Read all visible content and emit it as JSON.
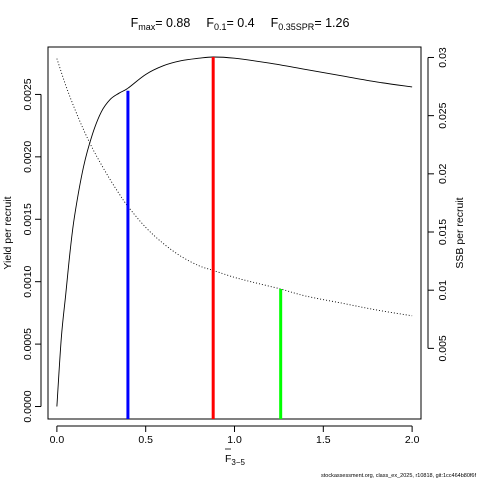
{
  "chart_data": {
    "type": "line",
    "title": {
      "fmax_label": "F",
      "fmax_sub": "max",
      "fmax_value": "= 0.88",
      "f01_label": "F",
      "f01_sub": "0.1",
      "f01_value": "= 0.4",
      "fspr_label": "F",
      "fspr_sub": "0.35SPR",
      "fspr_value": "= 1.26"
    },
    "xlabel": "F",
    "xlabel_sub": "3−5",
    "ylabel_left": "Yield per recruit",
    "ylabel_right": "SSB per recruit",
    "xlim": [
      -0.05,
      2.05
    ],
    "ylim_left": [
      -0.0001,
      0.00288
    ],
    "ylim_right": [
      -0.00107,
      0.0309
    ],
    "x_ticks": [
      0,
      0.5,
      1,
      1.5,
      2
    ],
    "x_tick_labels": [
      "0.0",
      "0.5",
      "1.0",
      "1.5",
      "2.0"
    ],
    "y_left_ticks": [
      0,
      0.0005,
      0.001,
      0.0015,
      0.002,
      0.0025
    ],
    "y_left_tick_labels": [
      "0.0000",
      "0.0005",
      "0.0010",
      "0.0015",
      "0.0020",
      "0.0025"
    ],
    "y_right_ticks": [
      0.005,
      0.01,
      0.015,
      0.02,
      0.025,
      0.03
    ],
    "y_right_tick_labels": [
      "0.005",
      "0.01",
      "0.015",
      "0.02",
      "0.025",
      "0.03"
    ],
    "grid": false,
    "series": [
      {
        "name": "Yield per recruit",
        "axis": "left",
        "style": "solid",
        "x": [
          0,
          0.025,
          0.05,
          0.075,
          0.1,
          0.15,
          0.2,
          0.25,
          0.3,
          0.35,
          0.4,
          0.5,
          0.6,
          0.7,
          0.8,
          0.88,
          1.0,
          1.2,
          1.4,
          1.6,
          1.8,
          2.0
        ],
        "y": [
          0,
          0.00055,
          0.0009,
          0.00125,
          0.00153,
          0.00192,
          0.00218,
          0.00236,
          0.00246,
          0.00251,
          0.00255,
          0.00266,
          0.00273,
          0.00277,
          0.00279,
          0.0028,
          0.00279,
          0.00275,
          0.0027,
          0.00265,
          0.0026,
          0.00256
        ]
      },
      {
        "name": "SSB per recruit",
        "axis": "right",
        "style": "dotted",
        "x": [
          0,
          0.05,
          0.1,
          0.15,
          0.2,
          0.25,
          0.3,
          0.35,
          0.4,
          0.5,
          0.6,
          0.7,
          0.8,
          0.88,
          1.0,
          1.1,
          1.26,
          1.4,
          1.6,
          1.8,
          2.0
        ],
        "y": [
          0.0299,
          0.0276,
          0.0256,
          0.0238,
          0.0222,
          0.0208,
          0.0195,
          0.0183,
          0.0172,
          0.0154,
          0.014,
          0.0129,
          0.0121,
          0.0117,
          0.0111,
          0.0107,
          0.0101,
          0.0095,
          0.0089,
          0.0083,
          0.0078
        ]
      }
    ],
    "reference_lines": [
      {
        "x": 0.4,
        "top": 0.00253,
        "axis": "left",
        "color": "#0000ff"
      },
      {
        "x": 0.88,
        "top": 0.0028,
        "axis": "left",
        "color": "#ff0000"
      },
      {
        "x": 1.26,
        "top": 0.0101,
        "axis": "right",
        "color": "#00ff00"
      }
    ]
  },
  "footer": "stockassessment.org, class_ex_2025, r10818, git:1cc464b80f6f"
}
